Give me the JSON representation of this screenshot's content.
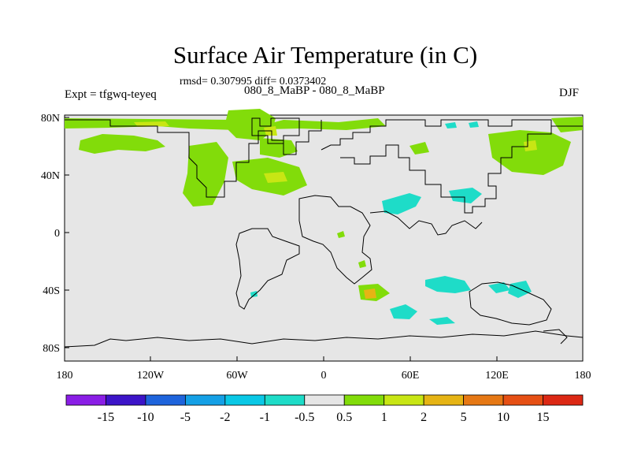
{
  "title": "Surface Air Temperature (in C)",
  "stats": {
    "rmsd_label": "rmsd= 0.307995 diff= 0.0373402"
  },
  "experiment": {
    "label": "Expt = tfgwq-teyeq",
    "case": "080_8_MaBP - 080_8_MaBP",
    "season": "DJF"
  },
  "axes": {
    "x_ticks": [
      "180",
      "120W",
      "60W",
      "0",
      "60E",
      "120E",
      "180"
    ],
    "y_ticks": [
      "80N",
      "40N",
      "0",
      "40S",
      "80S"
    ]
  },
  "colorbar": {
    "labels": [
      "-15",
      "-10",
      "-5",
      "-2",
      "-1",
      "-0.5",
      "0.5",
      "1",
      "2",
      "5",
      "10",
      "15"
    ],
    "colors": [
      "#8a1ee6",
      "#3c14c8",
      "#1e64dc",
      "#14a0e6",
      "#0ac8e6",
      "#1edcc8",
      "#e6e6e6",
      "#82dc0a",
      "#c8e614",
      "#e6b414",
      "#e67814",
      "#e65014",
      "#dc2814"
    ]
  },
  "colors": {
    "background_field": "#e6e6e6",
    "coast": "#000000"
  }
}
